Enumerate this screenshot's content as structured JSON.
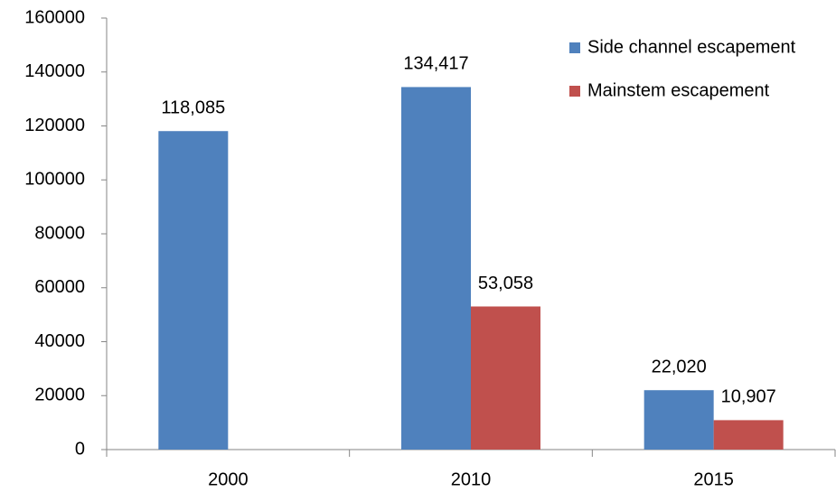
{
  "chart_data": {
    "type": "bar",
    "categories": [
      "2000",
      "2010",
      "2015"
    ],
    "series": [
      {
        "name": "Side channel escapement",
        "color": "#4f81bd",
        "values": [
          118085,
          134417,
          22020
        ],
        "value_labels": [
          "118,085",
          "134,417",
          "22,020"
        ]
      },
      {
        "name": "Mainstem escapement",
        "color": "#c0504d",
        "values": [
          null,
          53058,
          10907
        ],
        "value_labels": [
          null,
          "53,058",
          "10,907"
        ]
      }
    ],
    "ylim": [
      0,
      160000
    ],
    "yticks": [
      0,
      20000,
      40000,
      60000,
      80000,
      100000,
      120000,
      140000,
      160000
    ],
    "grid": false,
    "legend": "top-right"
  }
}
